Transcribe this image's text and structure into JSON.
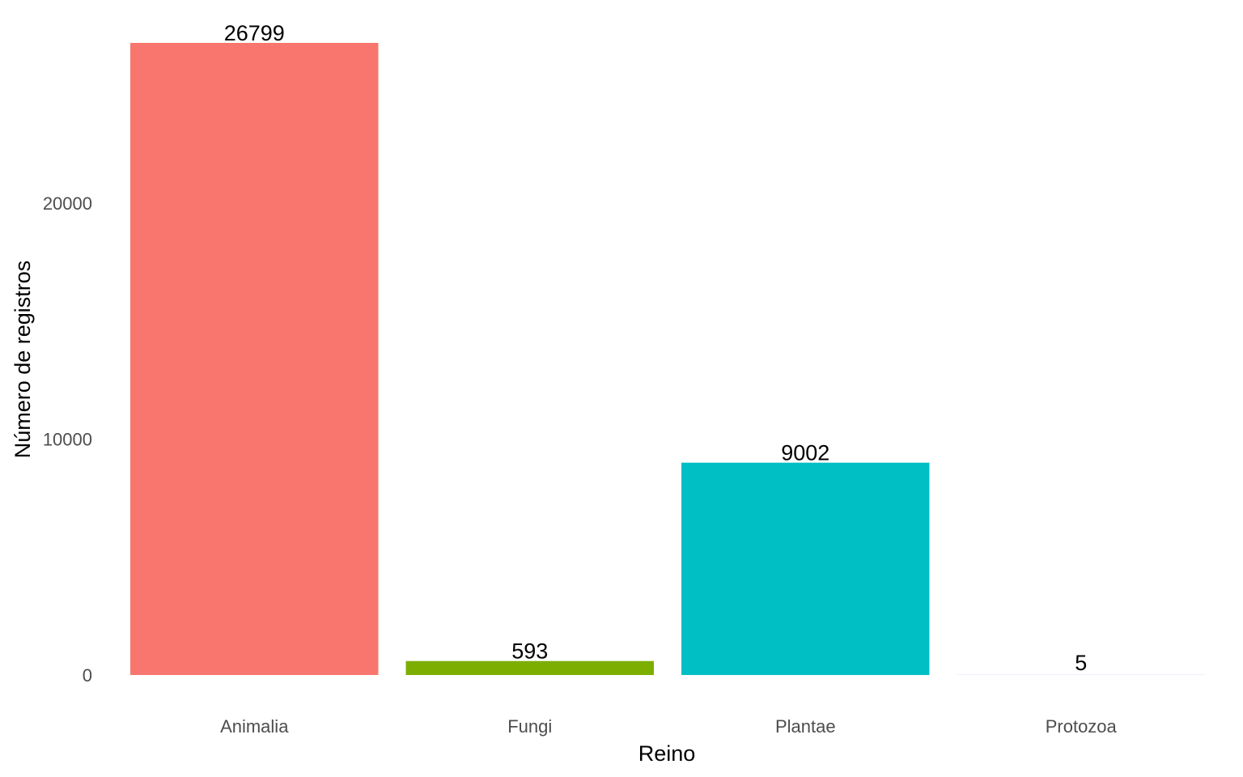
{
  "chart_data": {
    "type": "bar",
    "categories": [
      "Animalia",
      "Fungi",
      "Plantae",
      "Protozoa"
    ],
    "values": [
      26799,
      593,
      9002,
      5
    ],
    "value_labels": [
      "26799",
      "593",
      "9002",
      "5"
    ],
    "colors": [
      "#F8766D",
      "#7CAE00",
      "#00BFC4",
      "#C77CFF"
    ],
    "title": "",
    "xlabel": "Reino",
    "ylabel": "Número de registros",
    "yticks": [
      0,
      10000,
      20000
    ],
    "ytick_labels": [
      "0",
      "10000",
      "20000"
    ],
    "ylim": [
      0,
      26799
    ],
    "grid": false,
    "legend": "none"
  }
}
